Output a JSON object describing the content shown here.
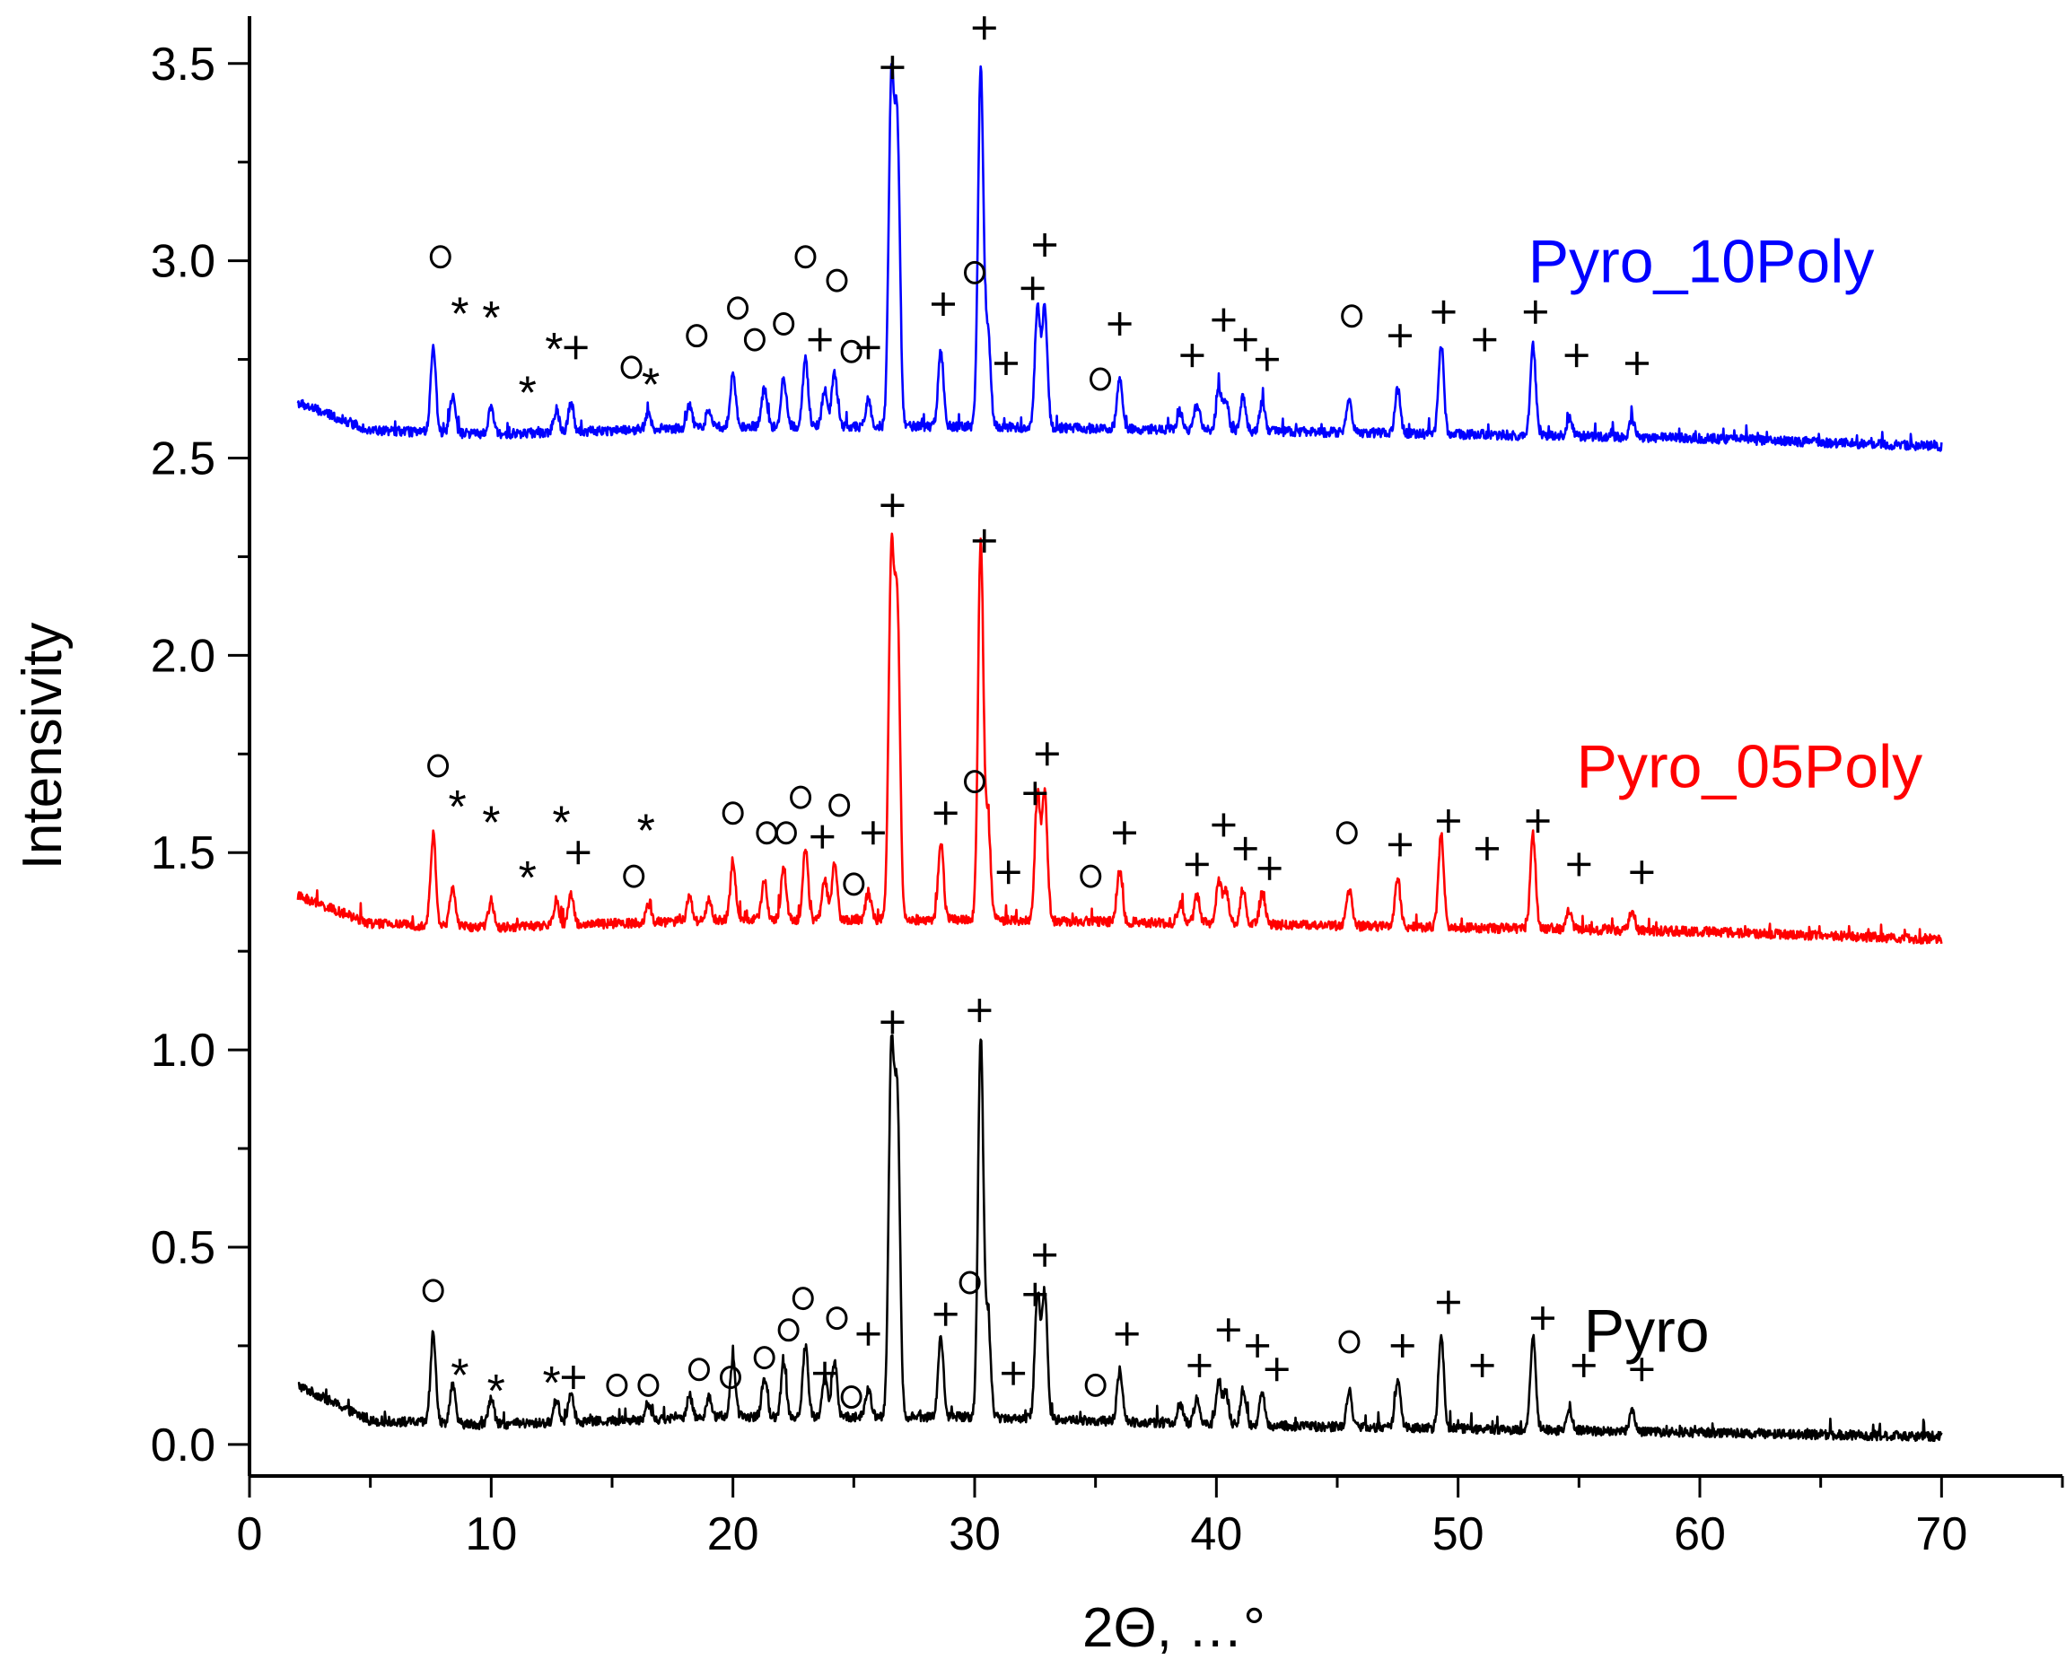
{
  "chart_data": {
    "type": "line",
    "title": "",
    "xlabel": "2Θ, …°",
    "ylabel": "Intensivity",
    "xlim": [
      0,
      75
    ],
    "ylim": [
      -0.08,
      3.62
    ],
    "x_ticks": [
      0,
      10,
      20,
      30,
      40,
      50,
      60,
      70
    ],
    "x_tick_labels": [
      "0",
      "10",
      "20",
      "30",
      "40",
      "50",
      "60",
      "70"
    ],
    "y_ticks": [
      0.0,
      0.5,
      1.0,
      1.5,
      2.0,
      2.5,
      3.0,
      3.5
    ],
    "y_tick_labels": [
      "0.0",
      "0.5",
      "1.0",
      "1.5",
      "2.0",
      "2.5",
      "3.0",
      "3.5"
    ],
    "grid": false,
    "x_range": [
      2,
      70
    ],
    "peaks_shared": [
      [
        7.6,
        0.23
      ],
      [
        8.4,
        0.1
      ],
      [
        10.0,
        0.07
      ],
      [
        12.7,
        0.06
      ],
      [
        13.3,
        0.08
      ],
      [
        16.5,
        0.04
      ],
      [
        18.2,
        0.06
      ],
      [
        19.0,
        0.05
      ],
      [
        20.0,
        0.14
      ],
      [
        21.3,
        0.1
      ],
      [
        22.1,
        0.13
      ],
      [
        23.0,
        0.18
      ],
      [
        23.8,
        0.1
      ],
      [
        24.2,
        0.14
      ],
      [
        25.6,
        0.07
      ],
      [
        26.55,
        0.9
      ],
      [
        26.8,
        0.78
      ],
      [
        28.6,
        0.2
      ],
      [
        30.25,
        0.96
      ],
      [
        30.55,
        0.25
      ],
      [
        32.6,
        0.32
      ],
      [
        32.9,
        0.32
      ],
      [
        36.0,
        0.13
      ],
      [
        38.5,
        0.05
      ],
      [
        39.2,
        0.07
      ],
      [
        40.1,
        0.11
      ],
      [
        40.4,
        0.08
      ],
      [
        41.1,
        0.09
      ],
      [
        41.9,
        0.08
      ],
      [
        45.5,
        0.09
      ],
      [
        47.5,
        0.12
      ],
      [
        49.3,
        0.24
      ],
      [
        53.1,
        0.24
      ],
      [
        54.6,
        0.05
      ],
      [
        57.2,
        0.05
      ]
    ],
    "series": [
      {
        "name": "Pyro",
        "color": "#000000",
        "offset": 0.0,
        "peak_scale": 1.0,
        "noise": 0.012,
        "baseline": [
          [
            2,
            0.15
          ],
          [
            5,
            0.06
          ],
          [
            10,
            0.05
          ],
          [
            20,
            0.07
          ],
          [
            30,
            0.07
          ],
          [
            40,
            0.05
          ],
          [
            50,
            0.04
          ],
          [
            60,
            0.03
          ],
          [
            70,
            0.02
          ]
        ],
        "label_x": 55.2,
        "label_y": 0.29,
        "markers": [
          [
            "o",
            7.6,
            0.39
          ],
          [
            "*",
            8.7,
            0.19
          ],
          [
            "*",
            10.2,
            0.15
          ],
          [
            "*",
            12.5,
            0.17
          ],
          [
            "+",
            13.4,
            0.17
          ],
          [
            "o",
            15.2,
            0.15
          ],
          [
            "o",
            16.5,
            0.15
          ],
          [
            "o",
            18.6,
            0.19
          ],
          [
            "o",
            19.9,
            0.17
          ],
          [
            "o",
            21.3,
            0.22
          ],
          [
            "o",
            22.3,
            0.29
          ],
          [
            "o",
            22.9,
            0.37
          ],
          [
            "o",
            24.3,
            0.32
          ],
          [
            "+",
            23.8,
            0.18
          ],
          [
            "o",
            24.9,
            0.12
          ],
          [
            "+",
            25.6,
            0.28
          ],
          [
            "+",
            26.6,
            1.07
          ],
          [
            "+",
            28.8,
            0.33
          ],
          [
            "o",
            29.8,
            0.41
          ],
          [
            "+",
            30.2,
            1.1
          ],
          [
            "+",
            31.6,
            0.18
          ],
          [
            "+",
            32.5,
            0.38
          ],
          [
            "+",
            32.9,
            0.48
          ],
          [
            "o",
            35.0,
            0.15
          ],
          [
            "+",
            36.3,
            0.28
          ],
          [
            "+",
            39.3,
            0.2
          ],
          [
            "+",
            40.5,
            0.29
          ],
          [
            "+",
            41.7,
            0.25
          ],
          [
            "+",
            42.5,
            0.19
          ],
          [
            "o",
            45.5,
            0.26
          ],
          [
            "+",
            47.7,
            0.25
          ],
          [
            "+",
            49.6,
            0.36
          ],
          [
            "+",
            51.0,
            0.2
          ],
          [
            "+",
            53.5,
            0.32
          ],
          [
            "+",
            55.2,
            0.2
          ],
          [
            "+",
            57.6,
            0.19
          ]
        ]
      },
      {
        "name": "Pyro_05Poly",
        "color": "#ff0000",
        "offset": 1.28,
        "peak_scale": 1.0,
        "noise": 0.012,
        "baseline": [
          [
            2,
            0.11
          ],
          [
            5,
            0.04
          ],
          [
            10,
            0.03
          ],
          [
            20,
            0.05
          ],
          [
            30,
            0.05
          ],
          [
            40,
            0.04
          ],
          [
            50,
            0.03
          ],
          [
            60,
            0.02
          ],
          [
            70,
            0.0
          ]
        ],
        "label_x": 54.9,
        "label_y": 1.72,
        "markers": [
          [
            "o",
            7.8,
            1.72
          ],
          [
            "*",
            8.6,
            1.63
          ],
          [
            "*",
            10.0,
            1.59
          ],
          [
            "*",
            11.5,
            1.45
          ],
          [
            "*",
            12.9,
            1.59
          ],
          [
            "+",
            13.6,
            1.5
          ],
          [
            "*",
            16.4,
            1.57
          ],
          [
            "o",
            15.9,
            1.44
          ],
          [
            "o",
            20.0,
            1.6
          ],
          [
            "o",
            21.4,
            1.55
          ],
          [
            "o",
            22.2,
            1.55
          ],
          [
            "o",
            22.8,
            1.64
          ],
          [
            "+",
            23.7,
            1.54
          ],
          [
            "o",
            24.4,
            1.62
          ],
          [
            "o",
            25.0,
            1.42
          ],
          [
            "+",
            25.8,
            1.55
          ],
          [
            "+",
            26.6,
            2.38
          ],
          [
            "+",
            28.8,
            1.6
          ],
          [
            "o",
            30.0,
            1.68
          ],
          [
            "+",
            30.4,
            2.29
          ],
          [
            "+",
            31.4,
            1.45
          ],
          [
            "+",
            32.5,
            1.65
          ],
          [
            "+",
            33.0,
            1.75
          ],
          [
            "o",
            34.8,
            1.44
          ],
          [
            "+",
            36.2,
            1.55
          ],
          [
            "+",
            39.2,
            1.47
          ],
          [
            "+",
            40.3,
            1.57
          ],
          [
            "+",
            41.2,
            1.51
          ],
          [
            "+",
            42.2,
            1.46
          ],
          [
            "o",
            45.4,
            1.55
          ],
          [
            "+",
            47.6,
            1.52
          ],
          [
            "+",
            49.6,
            1.58
          ],
          [
            "+",
            51.2,
            1.51
          ],
          [
            "+",
            53.3,
            1.58
          ],
          [
            "+",
            55.0,
            1.47
          ],
          [
            "+",
            57.6,
            1.45
          ]
        ]
      },
      {
        "name": "Pyro_10Poly",
        "color": "#0000ff",
        "offset": 2.53,
        "peak_scale": 0.95,
        "noise": 0.012,
        "baseline": [
          [
            2,
            0.11
          ],
          [
            5,
            0.04
          ],
          [
            10,
            0.03
          ],
          [
            20,
            0.05
          ],
          [
            30,
            0.05
          ],
          [
            40,
            0.04
          ],
          [
            50,
            0.03
          ],
          [
            60,
            0.02
          ],
          [
            70,
            0.0
          ]
        ],
        "label_x": 52.9,
        "label_y": 3.0,
        "markers": [
          [
            "o",
            7.9,
            3.01
          ],
          [
            "*",
            8.7,
            2.88
          ],
          [
            "*",
            10.0,
            2.87
          ],
          [
            "*",
            11.5,
            2.68
          ],
          [
            "*",
            12.6,
            2.79
          ],
          [
            "+",
            13.5,
            2.78
          ],
          [
            "o",
            15.8,
            2.73
          ],
          [
            "*",
            16.6,
            2.7
          ],
          [
            "o",
            18.5,
            2.81
          ],
          [
            "o",
            20.2,
            2.88
          ],
          [
            "o",
            20.9,
            2.8
          ],
          [
            "o",
            22.1,
            2.84
          ],
          [
            "o",
            23.0,
            3.01
          ],
          [
            "+",
            23.6,
            2.8
          ],
          [
            "o",
            24.3,
            2.95
          ],
          [
            "o",
            24.9,
            2.77
          ],
          [
            "+",
            25.6,
            2.78
          ],
          [
            "+",
            26.6,
            3.49
          ],
          [
            "+",
            28.7,
            2.89
          ],
          [
            "o",
            30.0,
            2.97
          ],
          [
            "+",
            30.4,
            3.59
          ],
          [
            "+",
            31.3,
            2.74
          ],
          [
            "+",
            32.4,
            2.93
          ],
          [
            "+",
            32.9,
            3.04
          ],
          [
            "o",
            35.2,
            2.7
          ],
          [
            "+",
            36.0,
            2.84
          ],
          [
            "+",
            39.0,
            2.76
          ],
          [
            "+",
            40.3,
            2.85
          ],
          [
            "+",
            41.2,
            2.8
          ],
          [
            "+",
            42.1,
            2.75
          ],
          [
            "o",
            45.6,
            2.86
          ],
          [
            "+",
            47.6,
            2.81
          ],
          [
            "+",
            49.4,
            2.87
          ],
          [
            "+",
            51.1,
            2.8
          ],
          [
            "+",
            53.2,
            2.87
          ],
          [
            "+",
            54.9,
            2.76
          ],
          [
            "+",
            57.4,
            2.74
          ]
        ]
      }
    ]
  }
}
